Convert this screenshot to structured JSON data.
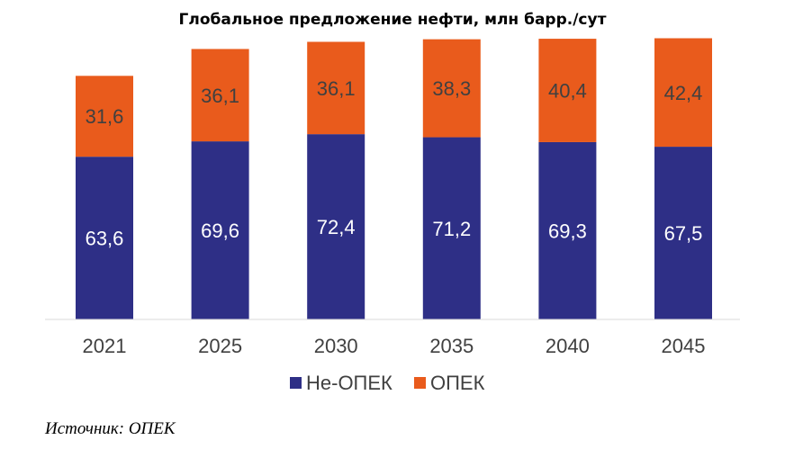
{
  "chart_data": {
    "type": "bar",
    "stacked": true,
    "title": "Глобальное предложение нефти, млн барр./сут",
    "categories": [
      "2021",
      "2025",
      "2030",
      "2035",
      "2040",
      "2045"
    ],
    "series": [
      {
        "name": "Не-ОПЕК",
        "color": "#2e2f86",
        "values": [
          63.6,
          69.6,
          72.4,
          71.2,
          69.3,
          67.5
        ],
        "labels": [
          "63,6",
          "69,6",
          "72,4",
          "71,2",
          "69,3",
          "67,5"
        ]
      },
      {
        "name": "ОПЕК",
        "color": "#e95b1c",
        "values": [
          31.6,
          36.1,
          36.1,
          38.3,
          40.4,
          42.4
        ],
        "labels": [
          "31,6",
          "36,1",
          "36,1",
          "38,3",
          "40,4",
          "42,4"
        ]
      }
    ],
    "ylim": [
      0,
      115
    ],
    "grid": false,
    "legend_position": "bottom"
  },
  "source": "Источник: ОПЕК"
}
